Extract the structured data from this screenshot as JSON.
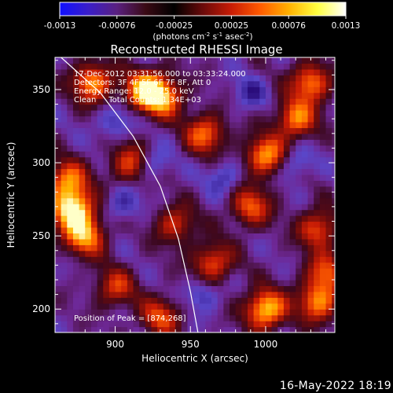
{
  "colorbar": {
    "ticks": [
      "-0.0013",
      "-0.00076",
      "-0.00025",
      "0.00025",
      "0.00076",
      "0.0013"
    ],
    "units_prefix": "(photons cm",
    "units_exp1": "-2",
    "units_mid": " s",
    "units_exp2": "-1",
    "units_mid2": " asec",
    "units_exp3": "-2",
    "units_suffix": ")",
    "colors": [
      "#1010ff",
      "#3a1ec8",
      "#5a2080",
      "#3a0a14",
      "#000000",
      "#6a0a0a",
      "#c81c05",
      "#ff5a00",
      "#ffb000",
      "#ffff40",
      "#ffffff"
    ]
  },
  "header": {
    "title": "Reconstructed RHESSI Image"
  },
  "annotations": {
    "time_range": "17-Dec-2012 03:31:56.000 to 03:33:24.000",
    "detectors": "Detectors: 3F 4F 5F 6F 7F 8F, Att 0",
    "energy": "Energy Range: 12.0 - 25.0 keV",
    "clean": "Clean     Total Counts: 1.34E+03",
    "peak": "Position of Peak = [874,268]"
  },
  "footer": {
    "date": "16-May-2022 18:19"
  },
  "chart_data": {
    "type": "heatmap",
    "title": "Reconstructed RHESSI Image",
    "xlabel": "Heliocentric X (arcsec)",
    "ylabel": "Heliocentric Y (arcsec)",
    "xlim": [
      860,
      1046
    ],
    "ylim": [
      184,
      372
    ],
    "x_ticks": [
      900,
      950,
      1000
    ],
    "y_ticks": [
      200,
      250,
      300,
      350
    ],
    "color_range": [
      -0.0013,
      0.0013
    ],
    "limb_curve": [
      [
        864,
        372
      ],
      [
        890,
        348
      ],
      [
        912,
        318
      ],
      [
        930,
        284
      ],
      [
        942,
        248
      ],
      [
        950,
        212
      ],
      [
        955,
        184
      ]
    ],
    "hotspots": [
      {
        "x": 872,
        "y": 268,
        "i": 1.0
      },
      {
        "x": 880,
        "y": 250,
        "i": 0.75
      },
      {
        "x": 868,
        "y": 288,
        "i": 0.7
      },
      {
        "x": 920,
        "y": 350,
        "i": 0.85
      },
      {
        "x": 932,
        "y": 345,
        "i": 0.7
      },
      {
        "x": 885,
        "y": 355,
        "i": 0.75
      },
      {
        "x": 910,
        "y": 300,
        "i": 0.55
      },
      {
        "x": 960,
        "y": 320,
        "i": 0.65
      },
      {
        "x": 1000,
        "y": 305,
        "i": 0.75
      },
      {
        "x": 1020,
        "y": 330,
        "i": 0.7
      },
      {
        "x": 1030,
        "y": 355,
        "i": 0.7
      },
      {
        "x": 990,
        "y": 270,
        "i": 0.6
      },
      {
        "x": 1035,
        "y": 255,
        "i": 0.6
      },
      {
        "x": 1040,
        "y": 225,
        "i": 0.55
      },
      {
        "x": 965,
        "y": 232,
        "i": 0.6
      },
      {
        "x": 1000,
        "y": 200,
        "i": 0.9
      },
      {
        "x": 1035,
        "y": 205,
        "i": 0.7
      },
      {
        "x": 930,
        "y": 195,
        "i": 0.55
      },
      {
        "x": 940,
        "y": 258,
        "i": 0.5
      },
      {
        "x": 900,
        "y": 215,
        "i": 0.5
      }
    ],
    "coldspots": [
      {
        "x": 905,
        "y": 272
      },
      {
        "x": 925,
        "y": 300
      },
      {
        "x": 972,
        "y": 290
      },
      {
        "x": 1020,
        "y": 300
      },
      {
        "x": 958,
        "y": 210
      },
      {
        "x": 990,
        "y": 348
      },
      {
        "x": 900,
        "y": 328
      }
    ]
  }
}
